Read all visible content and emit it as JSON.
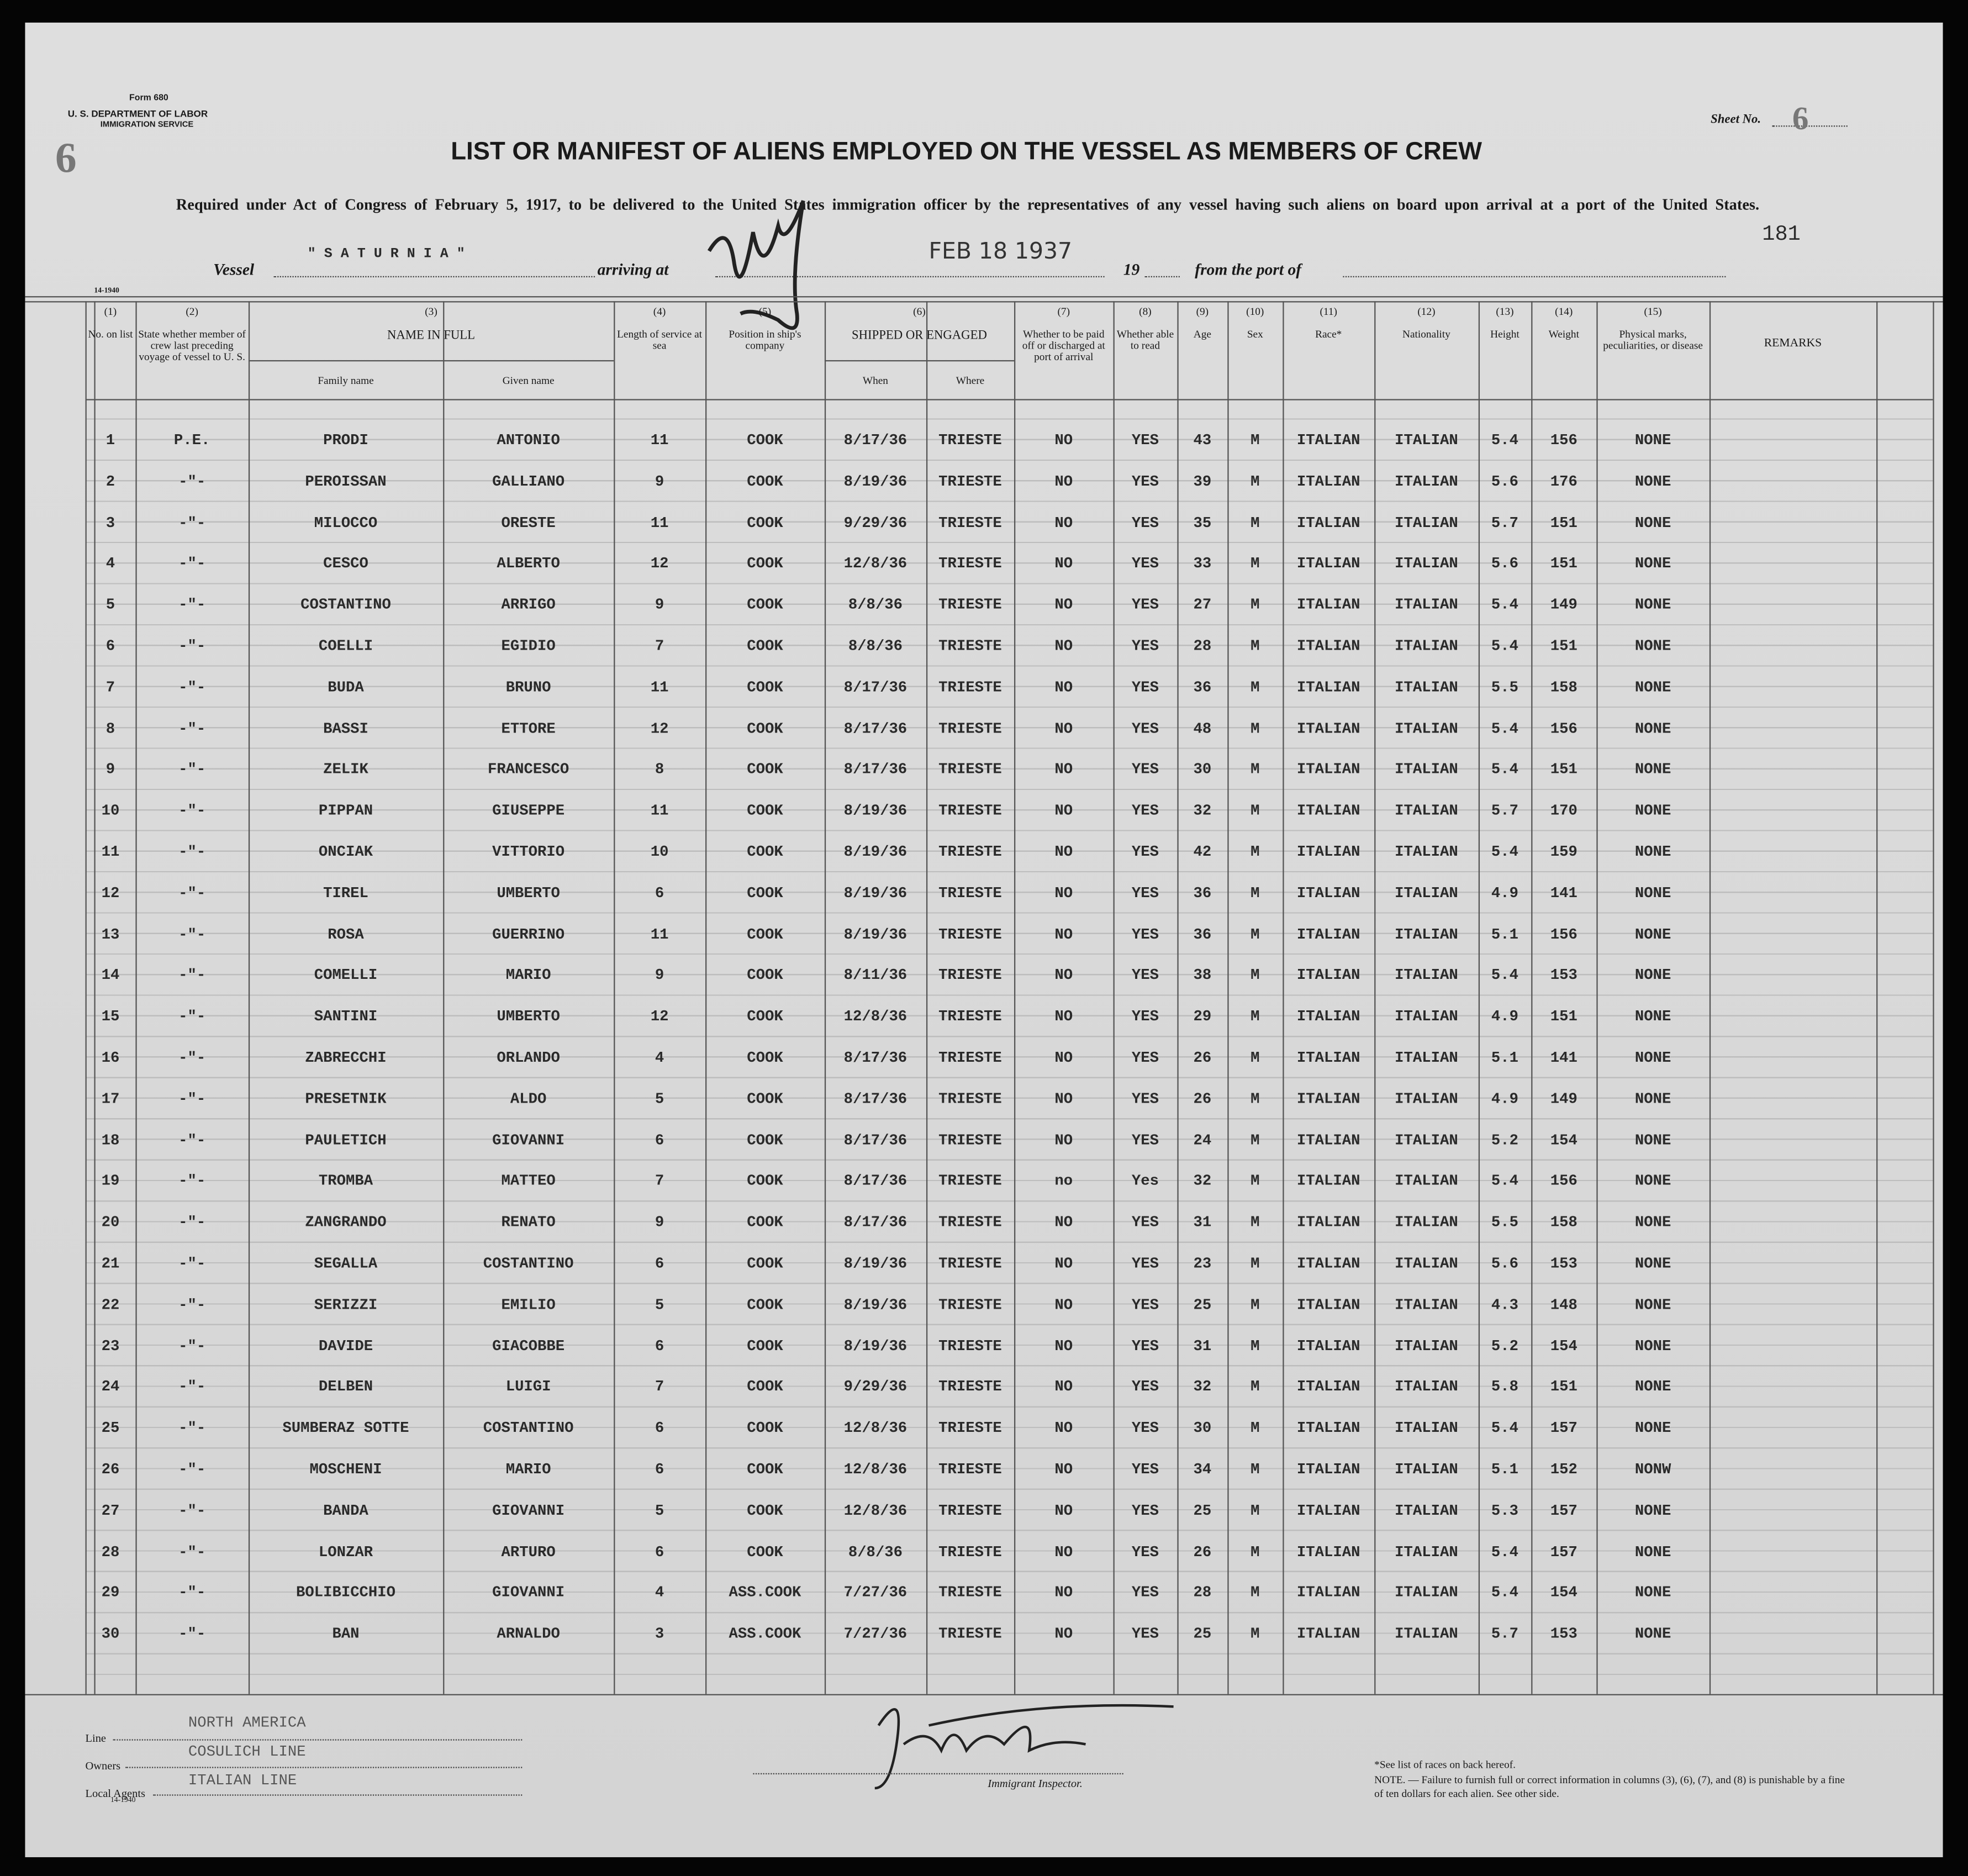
{
  "header": {
    "form": "Form 680",
    "department": "U. S. DEPARTMENT OF LABOR",
    "service": "IMMIGRATION SERVICE",
    "sheet_label": "Sheet No.",
    "sheet_number": "6",
    "margin_mark": "6",
    "form_code": "14-1940",
    "title": "LIST OR MANIFEST OF ALIENS EMPLOYED ON THE VESSEL AS MEMBERS OF CREW",
    "subtitle": "Required under Act of Congress of February 5, 1917, to be delivered to the United States immigration officer by the representatives of any vessel having such aliens on board upon arrival at a port of the United States.",
    "page_number": "181"
  },
  "vessel": {
    "vessel_label": "Vessel",
    "vessel_name": "\" S A T U R N I A \"",
    "arriving_label": "arriving at",
    "date_stamp": "FEB 18 1937",
    "year_label": "19",
    "port_label": "from the port of"
  },
  "table": {
    "columns": [
      {
        "number": "(1)",
        "label": "No. on list"
      },
      {
        "number": "(2)",
        "label": "State whether member of crew last preceding voyage of vessel to U. S."
      },
      {
        "number": "(3)",
        "label": "NAME IN FULL",
        "sub": [
          "Family name",
          "Given name"
        ]
      },
      {
        "number": "(4)",
        "label": "Length of service at sea"
      },
      {
        "number": "(5)",
        "label": "Position in ship's company"
      },
      {
        "number": "(6)",
        "label": "SHIPPED OR ENGAGED",
        "sub": [
          "When",
          "Where"
        ]
      },
      {
        "number": "(7)",
        "label": "Whether to be paid off or discharged at port of arrival"
      },
      {
        "number": "(8)",
        "label": "Whether able to read"
      },
      {
        "number": "(9)",
        "label": "Age"
      },
      {
        "number": "(10)",
        "label": "Sex"
      },
      {
        "number": "(11)",
        "label": "Race*"
      },
      {
        "number": "(12)",
        "label": "Nationality"
      },
      {
        "number": "(13)",
        "label": "Height"
      },
      {
        "number": "(14)",
        "label": "Weight"
      },
      {
        "number": "(15)",
        "label": "Physical marks, peculiarities, or disease"
      },
      {
        "label": "REMARKS"
      }
    ],
    "rows": [
      [
        "1",
        "P.E.",
        "PRODI",
        "ANTONIO",
        "11",
        "COOK",
        "8/17/36",
        "TRIESTE",
        "NO",
        "YES",
        "43",
        "M",
        "ITALIAN",
        "ITALIAN",
        "5.4",
        "156",
        "NONE"
      ],
      [
        "2",
        "-\"-",
        "PEROISSAN",
        "GALLIANO",
        "9",
        "COOK",
        "8/19/36",
        "TRIESTE",
        "NO",
        "YES",
        "39",
        "M",
        "ITALIAN",
        "ITALIAN",
        "5.6",
        "176",
        "NONE"
      ],
      [
        "3",
        "-\"-",
        "MILOCCO",
        "ORESTE",
        "11",
        "COOK",
        "9/29/36",
        "TRIESTE",
        "NO",
        "YES",
        "35",
        "M",
        "ITALIAN",
        "ITALIAN",
        "5.7",
        "151",
        "NONE"
      ],
      [
        "4",
        "-\"-",
        "CESCO",
        "ALBERTO",
        "12",
        "COOK",
        "12/8/36",
        "TRIESTE",
        "NO",
        "YES",
        "33",
        "M",
        "ITALIAN",
        "ITALIAN",
        "5.6",
        "151",
        "NONE"
      ],
      [
        "5",
        "-\"-",
        "COSTANTINO",
        "ARRIGO",
        "9",
        "COOK",
        "8/8/36",
        "TRIESTE",
        "NO",
        "YES",
        "27",
        "M",
        "ITALIAN",
        "ITALIAN",
        "5.4",
        "149",
        "NONE"
      ],
      [
        "6",
        "-\"-",
        "COELLI",
        "EGIDIO",
        "7",
        "COOK",
        "8/8/36",
        "TRIESTE",
        "NO",
        "YES",
        "28",
        "M",
        "ITALIAN",
        "ITALIAN",
        "5.4",
        "151",
        "NONE"
      ],
      [
        "7",
        "-\"-",
        "BUDA",
        "BRUNO",
        "11",
        "COOK",
        "8/17/36",
        "TRIESTE",
        "NO",
        "YES",
        "36",
        "M",
        "ITALIAN",
        "ITALIAN",
        "5.5",
        "158",
        "NONE"
      ],
      [
        "8",
        "-\"-",
        "BASSI",
        "ETTORE",
        "12",
        "COOK",
        "8/17/36",
        "TRIESTE",
        "NO",
        "YES",
        "48",
        "M",
        "ITALIAN",
        "ITALIAN",
        "5.4",
        "156",
        "NONE"
      ],
      [
        "9",
        "-\"-",
        "ZELIK",
        "FRANCESCO",
        "8",
        "COOK",
        "8/17/36",
        "TRIESTE",
        "NO",
        "YES",
        "30",
        "M",
        "ITALIAN",
        "ITALIAN",
        "5.4",
        "151",
        "NONE"
      ],
      [
        "10",
        "-\"-",
        "PIPPAN",
        "GIUSEPPE",
        "11",
        "COOK",
        "8/19/36",
        "TRIESTE",
        "NO",
        "YES",
        "32",
        "M",
        "ITALIAN",
        "ITALIAN",
        "5.7",
        "170",
        "NONE"
      ],
      [
        "11",
        "-\"-",
        "ONCIAK",
        "VITTORIO",
        "10",
        "COOK",
        "8/19/36",
        "TRIESTE",
        "NO",
        "YES",
        "42",
        "M",
        "ITALIAN",
        "ITALIAN",
        "5.4",
        "159",
        "NONE"
      ],
      [
        "12",
        "-\"-",
        "TIREL",
        "UMBERTO",
        "6",
        "COOK",
        "8/19/36",
        "TRIESTE",
        "NO",
        "YES",
        "36",
        "M",
        "ITALIAN",
        "ITALIAN",
        "4.9",
        "141",
        "NONE"
      ],
      [
        "13",
        "-\"-",
        "ROSA",
        "GUERRINO",
        "11",
        "COOK",
        "8/19/36",
        "TRIESTE",
        "NO",
        "YES",
        "36",
        "M",
        "ITALIAN",
        "ITALIAN",
        "5.1",
        "156",
        "NONE"
      ],
      [
        "14",
        "-\"-",
        "COMELLI",
        "MARIO",
        "9",
        "COOK",
        "8/11/36",
        "TRIESTE",
        "NO",
        "YES",
        "38",
        "M",
        "ITALIAN",
        "ITALIAN",
        "5.4",
        "153",
        "NONE"
      ],
      [
        "15",
        "-\"-",
        "SANTINI",
        "UMBERTO",
        "12",
        "COOK",
        "12/8/36",
        "TRIESTE",
        "NO",
        "YES",
        "29",
        "M",
        "ITALIAN",
        "ITALIAN",
        "4.9",
        "151",
        "NONE"
      ],
      [
        "16",
        "-\"-",
        "ZABRECCHI",
        "ORLANDO",
        "4",
        "COOK",
        "8/17/36",
        "TRIESTE",
        "NO",
        "YES",
        "26",
        "M",
        "ITALIAN",
        "ITALIAN",
        "5.1",
        "141",
        "NONE"
      ],
      [
        "17",
        "-\"-",
        "PRESETNIK",
        "ALDO",
        "5",
        "COOK",
        "8/17/36",
        "TRIESTE",
        "NO",
        "YES",
        "26",
        "M",
        "ITALIAN",
        "ITALIAN",
        "4.9",
        "149",
        "NONE"
      ],
      [
        "18",
        "-\"-",
        "PAULETICH",
        "GIOVANNI",
        "6",
        "COOK",
        "8/17/36",
        "TRIESTE",
        "NO",
        "YES",
        "24",
        "M",
        "ITALIAN",
        "ITALIAN",
        "5.2",
        "154",
        "NONE"
      ],
      [
        "19",
        "-\"-",
        "TROMBA",
        "MATTEO",
        "7",
        "COOK",
        "8/17/36",
        "TRIESTE",
        "no",
        "Yes",
        "32",
        "M",
        "ITALIAN",
        "ITALIAN",
        "5.4",
        "156",
        "NONE"
      ],
      [
        "20",
        "-\"-",
        "ZANGRANDO",
        "RENATO",
        "9",
        "COOK",
        "8/17/36",
        "TRIESTE",
        "NO",
        "YES",
        "31",
        "M",
        "ITALIAN",
        "ITALIAN",
        "5.5",
        "158",
        "NONE"
      ],
      [
        "21",
        "-\"-",
        "SEGALLA",
        "COSTANTINO",
        "6",
        "COOK",
        "8/19/36",
        "TRIESTE",
        "NO",
        "YES",
        "23",
        "M",
        "ITALIAN",
        "ITALIAN",
        "5.6",
        "153",
        "NONE"
      ],
      [
        "22",
        "-\"-",
        "SERIZZI",
        "EMILIO",
        "5",
        "COOK",
        "8/19/36",
        "TRIESTE",
        "NO",
        "YES",
        "25",
        "M",
        "ITALIAN",
        "ITALIAN",
        "4.3",
        "148",
        "NONE"
      ],
      [
        "23",
        "-\"-",
        "DAVIDE",
        "GIACOBBE",
        "6",
        "COOK",
        "8/19/36",
        "TRIESTE",
        "NO",
        "YES",
        "31",
        "M",
        "ITALIAN",
        "ITALIAN",
        "5.2",
        "154",
        "NONE"
      ],
      [
        "24",
        "-\"-",
        "DELBEN",
        "LUIGI",
        "7",
        "COOK",
        "9/29/36",
        "TRIESTE",
        "NO",
        "YES",
        "32",
        "M",
        "ITALIAN",
        "ITALIAN",
        "5.8",
        "151",
        "NONE"
      ],
      [
        "25",
        "-\"-",
        "SUMBERAZ SOTTE",
        "COSTANTINO",
        "6",
        "COOK",
        "12/8/36",
        "TRIESTE",
        "NO",
        "YES",
        "30",
        "M",
        "ITALIAN",
        "ITALIAN",
        "5.4",
        "157",
        "NONE"
      ],
      [
        "26",
        "-\"-",
        "MOSCHENI",
        "MARIO",
        "6",
        "COOK",
        "12/8/36",
        "TRIESTE",
        "NO",
        "YES",
        "34",
        "M",
        "ITALIAN",
        "ITALIAN",
        "5.1",
        "152",
        "NONW"
      ],
      [
        "27",
        "-\"-",
        "BANDA",
        "GIOVANNI",
        "5",
        "COOK",
        "12/8/36",
        "TRIESTE",
        "NO",
        "YES",
        "25",
        "M",
        "ITALIAN",
        "ITALIAN",
        "5.3",
        "157",
        "NONE"
      ],
      [
        "28",
        "-\"-",
        "LONZAR",
        "ARTURO",
        "6",
        "COOK",
        "8/8/36",
        "TRIESTE",
        "NO",
        "YES",
        "26",
        "M",
        "ITALIAN",
        "ITALIAN",
        "5.4",
        "157",
        "NONE"
      ],
      [
        "29",
        "-\"-",
        "BOLIBICCHIO",
        "GIOVANNI",
        "4",
        "ASS.COOK",
        "7/27/36",
        "TRIESTE",
        "NO",
        "YES",
        "28",
        "M",
        "ITALIAN",
        "ITALIAN",
        "5.4",
        "154",
        "NONE"
      ],
      [
        "30",
        "-\"-",
        "BAN",
        "ARNALDO",
        "3",
        "ASS.COOK",
        "7/27/36",
        "TRIESTE",
        "NO",
        "YES",
        "25",
        "M",
        "ITALIAN",
        "ITALIAN",
        "5.7",
        "153",
        "NONE"
      ]
    ]
  },
  "footer": {
    "line_label": "Line",
    "line": "NORTH AMERICA",
    "owners_label": "Owners",
    "owners": "COSULICH LINE",
    "agents_label": "Local Agents",
    "agents": "ITALIAN LINE",
    "form_code": "14-1940",
    "inspector_label": "Immigrant Inspector.",
    "races_note": "*See list of races on back hereof.",
    "note": "NOTE. — Failure to furnish full or correct information in columns (3), (6), (7), and (8) is punishable by a fine of ten dollars for each alien. See other side."
  }
}
